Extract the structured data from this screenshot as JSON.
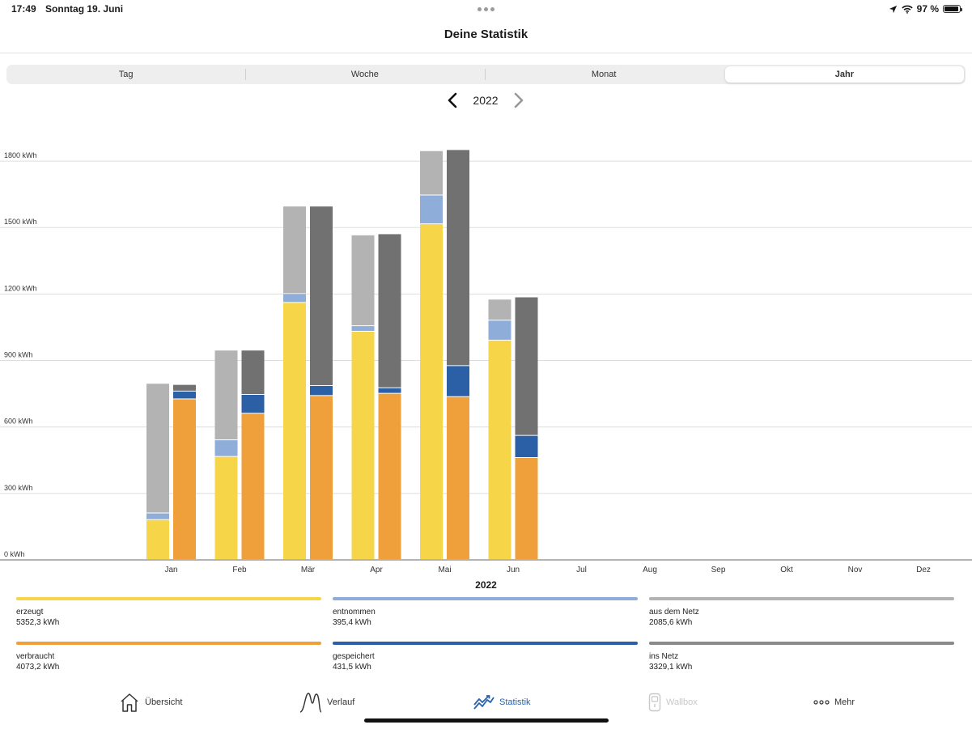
{
  "status_bar": {
    "time": "17:49",
    "date": "Sonntag 19. Juni",
    "battery": "97 %",
    "battery_level": 0.97,
    "icons": [
      "location-arrow-icon",
      "wifi-icon",
      "battery-icon"
    ]
  },
  "header": {
    "title": "Deine Statistik"
  },
  "tabs": {
    "items": [
      {
        "label": "Tag"
      },
      {
        "label": "Woche"
      },
      {
        "label": "Monat"
      },
      {
        "label": "Jahr"
      }
    ],
    "active": "Jahr"
  },
  "year_nav": {
    "year": "2022",
    "prev_icon": "chevron-left-icon",
    "next_icon": "chevron-right-icon"
  },
  "chart_data": {
    "type": "bar",
    "stacked": true,
    "unit": "kWh",
    "categories": [
      "Jan",
      "Feb",
      "Mär",
      "Apr",
      "Mai",
      "Jun",
      "Jul",
      "Aug",
      "Sep",
      "Okt",
      "Nov",
      "Dez"
    ],
    "y_ticks": [
      0,
      300,
      600,
      900,
      1200,
      1500,
      1800
    ],
    "y_tick_labels": [
      "0 kWh",
      "300 kWh",
      "600 kWh",
      "900 kWh",
      "1200 kWh",
      "1500 kWh",
      "1800 kWh"
    ],
    "ylim": [
      0,
      1950
    ],
    "xlabel": "2022",
    "grid": true,
    "groups": [
      {
        "stack": "left",
        "series": [
          {
            "name": "erzeugt",
            "color": "#f7d548",
            "values": [
              180,
              465,
              1160,
              1030,
              1515,
              990,
              null,
              null,
              null,
              null,
              null,
              null
            ]
          },
          {
            "name": "entnommen",
            "color": "#8fadd9",
            "values": [
              30,
              75,
              40,
              25,
              130,
              90,
              null,
              null,
              null,
              null,
              null,
              null
            ]
          },
          {
            "name": "aus dem Netz",
            "color": "#b3b3b3",
            "values": [
              585,
              405,
              395,
              410,
              200,
              95,
              null,
              null,
              null,
              null,
              null,
              null
            ]
          }
        ]
      },
      {
        "stack": "right",
        "series": [
          {
            "name": "verbraucht",
            "color": "#f0a03a",
            "values": [
              725,
              660,
              740,
              750,
              735,
              460,
              null,
              null,
              null,
              null,
              null,
              null
            ]
          },
          {
            "name": "gespeichert",
            "color": "#2b5fa6",
            "values": [
              35,
              85,
              45,
              25,
              140,
              100,
              null,
              null,
              null,
              null,
              null,
              null
            ]
          },
          {
            "name": "ins Netz",
            "color": "#717171",
            "values": [
              30,
              200,
              810,
              695,
              975,
              625,
              null,
              null,
              null,
              null,
              null,
              null
            ]
          }
        ]
      }
    ]
  },
  "legend": [
    {
      "label": "erzeugt",
      "value": "5352,3 kWh",
      "color": "#f7d548"
    },
    {
      "label": "entnommen",
      "value": "395,4 kWh",
      "color": "#8fadd9"
    },
    {
      "label": "aus dem Netz",
      "value": "2085,6 kWh",
      "color": "#b3b3b3"
    },
    {
      "label": "verbraucht",
      "value": "4073,2 kWh",
      "color": "#f0a03a"
    },
    {
      "label": "gespeichert",
      "value": "431,5 kWh",
      "color": "#2b5fa6"
    },
    {
      "label": "ins Netz",
      "value": "3329,1 kWh",
      "color": "#8a8a8a"
    }
  ],
  "tabbar": {
    "items": [
      {
        "label": "Übersicht",
        "icon": "house-icon",
        "state": "normal"
      },
      {
        "label": "Verlauf",
        "icon": "curve-icon",
        "state": "normal"
      },
      {
        "label": "Statistik",
        "icon": "statistics-icon",
        "state": "active"
      },
      {
        "label": "Wallbox",
        "icon": "wallbox-icon",
        "state": "disabled"
      },
      {
        "label": "Mehr",
        "icon": "more-dots-icon",
        "state": "normal"
      }
    ],
    "active_color": "#2a62a8"
  }
}
